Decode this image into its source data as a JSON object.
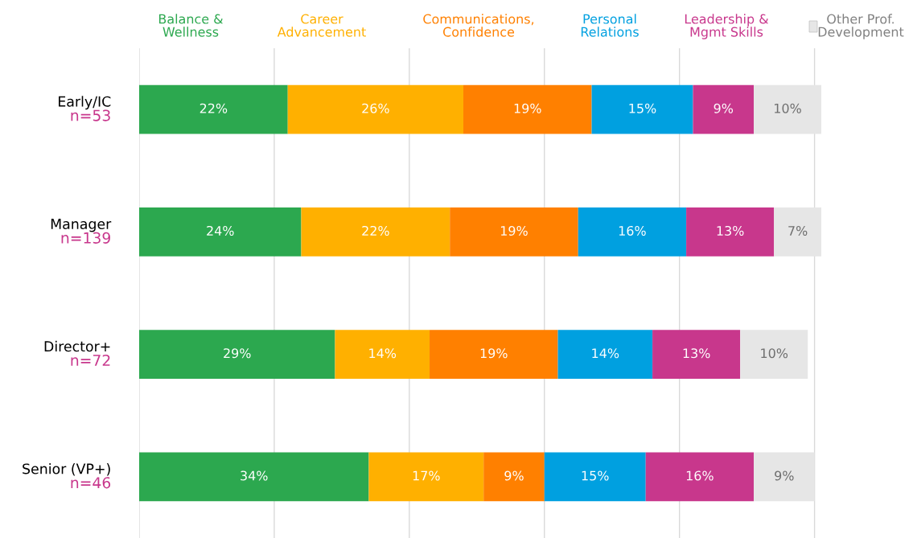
{
  "chart_data": {
    "type": "bar",
    "orientation": "horizontal",
    "stacked": true,
    "grid": "x",
    "legend": "top",
    "tick_labels": "y",
    "categories": [
      "Early/IC",
      "Manager",
      "Director+",
      "Senior (VP+)"
    ],
    "series": [
      {
        "name": "Balance & Wellness",
        "color": "#2ca84f",
        "values": [
          22,
          24,
          29,
          34
        ],
        "value_labels": [
          "22%",
          "24%",
          "29%",
          "34%"
        ]
      },
      {
        "name": "Career Advancement",
        "color": "#ffb000",
        "values": [
          26,
          22,
          14,
          17
        ],
        "value_labels": [
          "26%",
          "22%",
          "14%",
          "17%"
        ]
      },
      {
        "name": "Communications, Confidence",
        "color": "#ff8000",
        "values": [
          19,
          19,
          19,
          9
        ],
        "value_labels": [
          "19%",
          "19%",
          "19%",
          "9%"
        ]
      },
      {
        "name": "Personal Relations",
        "color": "#00a0e0",
        "values": [
          15,
          16,
          14,
          15
        ],
        "value_labels": [
          "15%",
          "16%",
          "14%",
          "15%"
        ]
      },
      {
        "name": "Leadership & Mgmt Skills",
        "color": "#c8378c",
        "values": [
          9,
          13,
          13,
          16
        ],
        "value_labels": [
          "9%",
          "13%",
          "13%",
          "16%"
        ]
      },
      {
        "name": "Other Prof. Development",
        "color": "#e6e6e6",
        "values": [
          10,
          7,
          10,
          9
        ],
        "value_labels": [
          "10%",
          "7%",
          "10%",
          "9%"
        ]
      }
    ],
    "annotations": [
      "n=53",
      "n=139",
      "n=72",
      "n=46"
    ]
  }
}
